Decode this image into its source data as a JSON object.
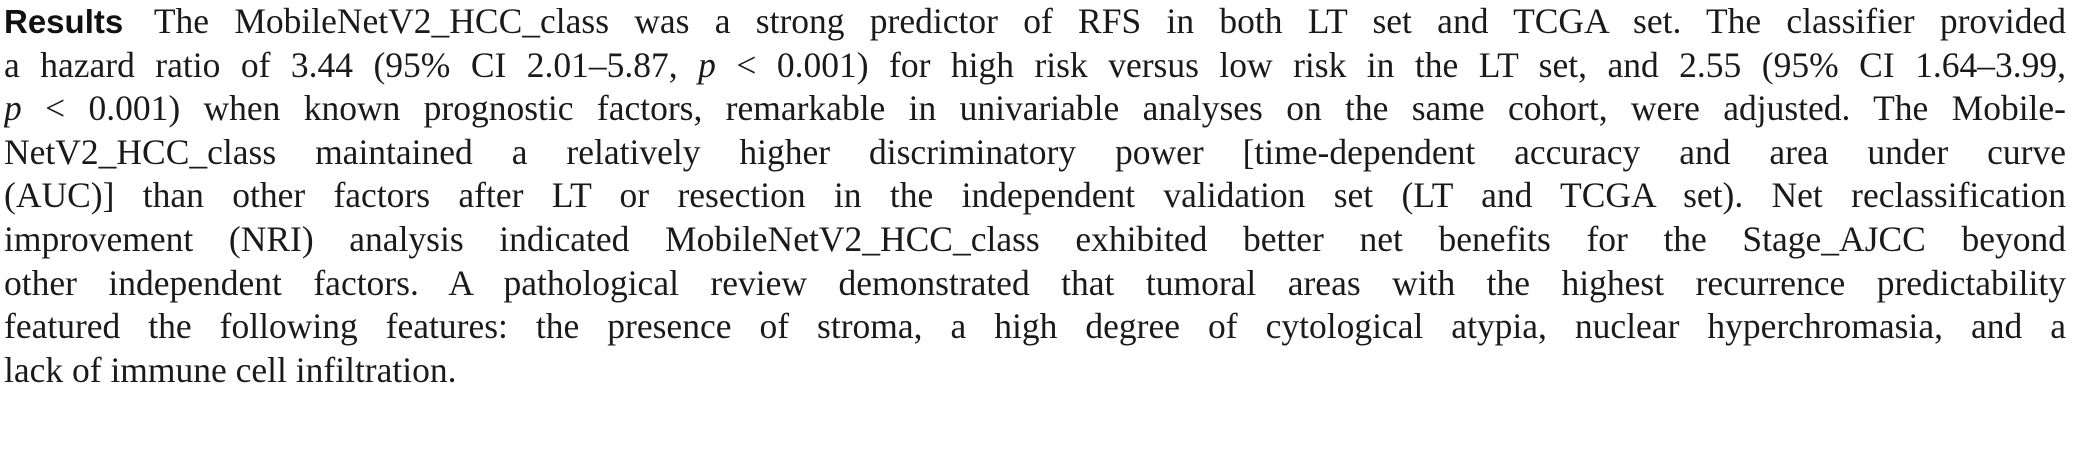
{
  "section": {
    "heading": "Results",
    "lines": [
      {
        "a": "The MobileNetV2_HCC_class was a strong predictor of RFS in both LT set and TCGA set. The classifier provided"
      },
      {
        "a": "a hazard ratio of 3.44 (95% CI 2.01–5.87, ",
        "p": "p",
        "b": " < 0.001) for high risk versus low risk in the LT set, and 2.55 (95% CI 1.64–3.99,"
      },
      {
        "p": "p",
        "b": " < 0.001) when known prognostic factors, remarkable in univariable analyses on the same cohort, were adjusted. The Mobile-"
      },
      {
        "a": "NetV2_HCC_class maintained a relatively higher discriminatory power [time-dependent accuracy and area under curve"
      },
      {
        "a": "(AUC)] than other factors after LT or resection in the independent validation set (LT and TCGA set). Net reclassification"
      },
      {
        "a": "improvement (NRI) analysis indicated MobileNetV2_HCC_class exhibited better net benefits for the Stage_AJCC beyond"
      },
      {
        "a": "other independent factors. A pathological review demonstrated that tumoral areas with the highest recurrence predictability"
      },
      {
        "a": "featured the following features: the presence of stroma, a high degree of cytological atypia, nuclear hyperchromasia, and a"
      },
      {
        "a": "lack of immune cell infiltration."
      }
    ]
  }
}
